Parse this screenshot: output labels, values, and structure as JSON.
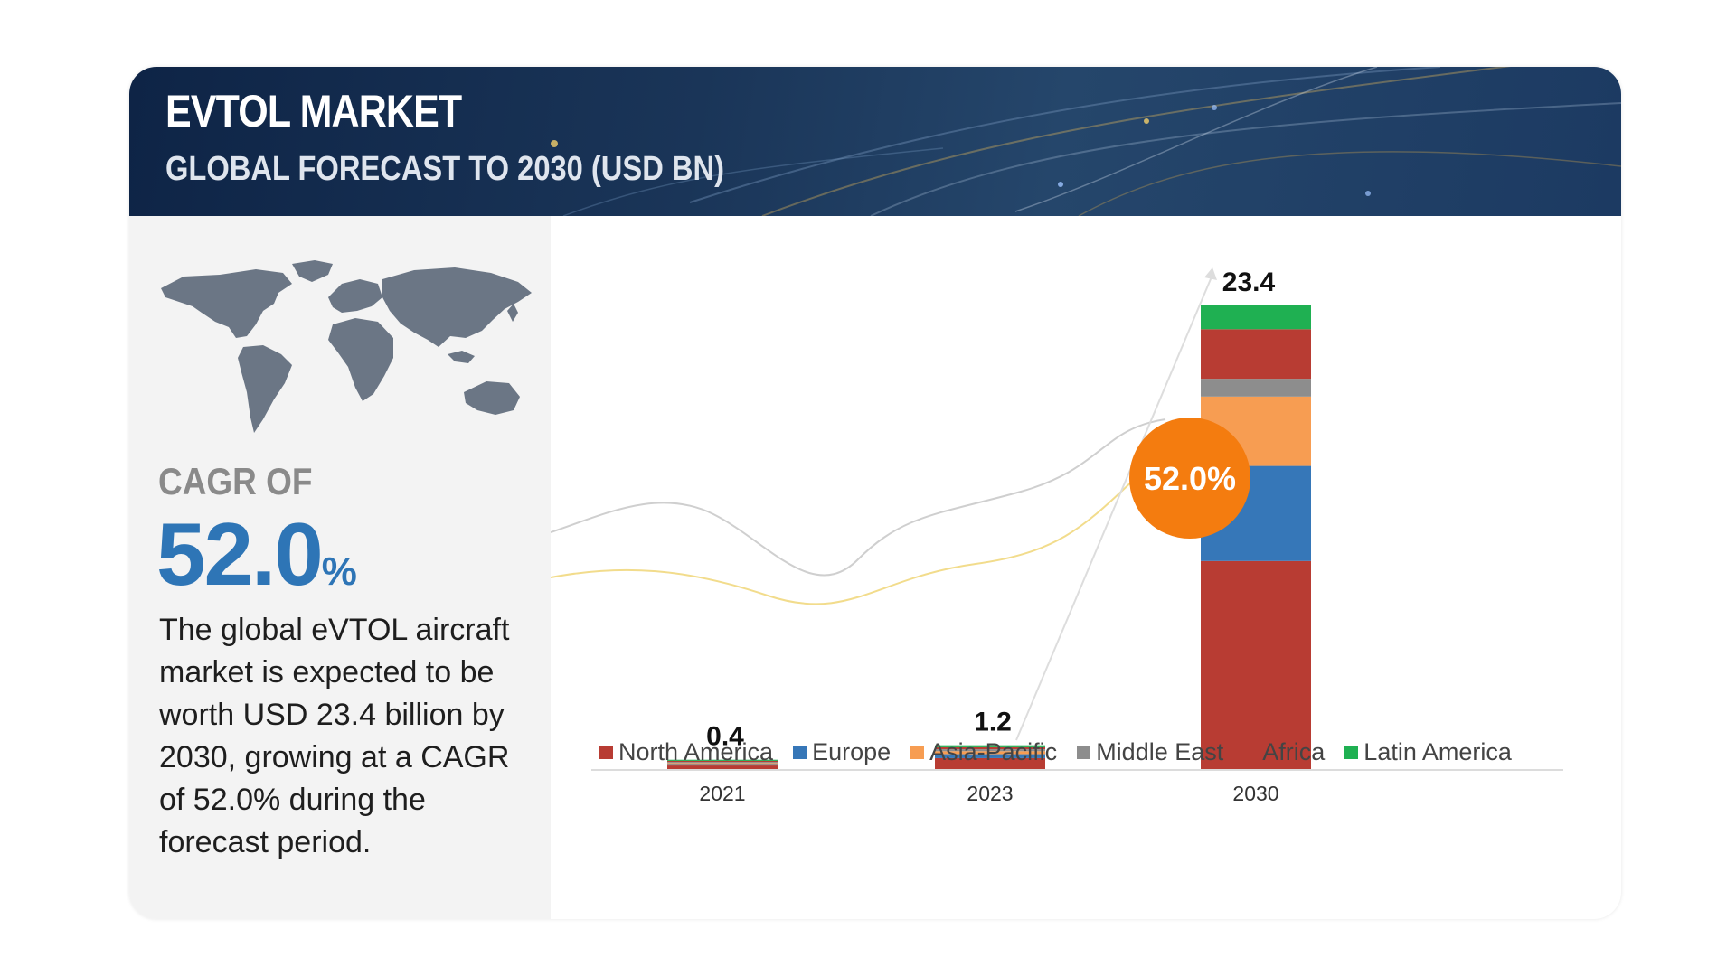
{
  "header": {
    "title": "EVTOL MARKET",
    "subtitle": "GLOBAL FORECAST TO 2030 (USD BN)"
  },
  "left_panel": {
    "cagr_label": "CAGR OF",
    "cagr_value": "52.0",
    "cagr_unit": "%",
    "description": "The global eVTOL aircraft market is expected to be worth USD 23.4 billion by 2030, growing at a CAGR of 52.0% during the forecast period."
  },
  "colors": {
    "banner_bg": "#1a3558",
    "panel_bg": "#f3f3f3",
    "cagr_blue": "#2e75b6",
    "badge_orange": "#f47c0f",
    "map_gray": "#6b7685"
  },
  "icons": [
    "world-map-icon"
  ],
  "chart_data": {
    "type": "bar",
    "stacked": true,
    "categories": [
      "2021",
      "2023",
      "2030"
    ],
    "totals": [
      0.4,
      1.2,
      23.4
    ],
    "total_labels": [
      "0.4",
      "1.2",
      "23.4"
    ],
    "series": [
      {
        "name": "North America",
        "color": "#b83c33",
        "values": [
          0.18,
          0.55,
          10.5
        ]
      },
      {
        "name": "Europe",
        "color": "#3677b8",
        "values": [
          0.07,
          0.2,
          4.8
        ]
      },
      {
        "name": "Asia-Pacific",
        "color": "#f79d52",
        "values": [
          0.05,
          0.15,
          3.5
        ]
      },
      {
        "name": "Middle East",
        "color": "#8d8d8d",
        "values": [
          0.03,
          0.1,
          0.9
        ]
      },
      {
        "name": "Africa",
        "color": "#b83c33",
        "values": [
          0.04,
          0.1,
          2.5
        ]
      },
      {
        "name": "Latin America",
        "color": "#1fb052",
        "values": [
          0.03,
          0.1,
          1.2
        ]
      }
    ],
    "annotation": "52.0%",
    "ylim": [
      0,
      23.4
    ],
    "grid": false,
    "legend_position": "bottom"
  }
}
